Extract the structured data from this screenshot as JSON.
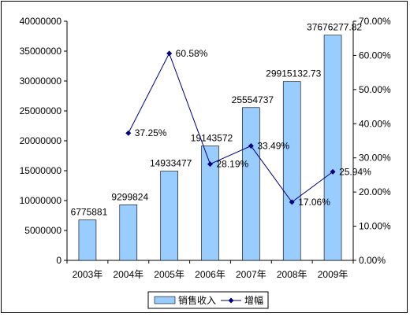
{
  "chart_data": {
    "type": "bar+line",
    "categories": [
      "2003年",
      "2004年",
      "2005年",
      "2006年",
      "2007年",
      "2008年",
      "2009年"
    ],
    "series": [
      {
        "name": "销售收入",
        "kind": "bar",
        "axis": "left",
        "values": [
          6775881,
          9299824,
          14933477,
          19143572,
          25554737,
          29915132.73,
          37676277.82
        ],
        "labels": [
          "6775881",
          "9299824",
          "14933477",
          "19143572",
          "25554737",
          "29915132.73",
          "37676277.82"
        ]
      },
      {
        "name": "增幅",
        "kind": "line",
        "axis": "right",
        "values": [
          null,
          37.25,
          60.58,
          28.19,
          33.49,
          17.06,
          25.94
        ],
        "labels": [
          null,
          "37.25%",
          "60.58%",
          "28.19%",
          "33.49%",
          "17.06%",
          "25.94%"
        ]
      }
    ],
    "y_left": {
      "ylim": [
        0,
        40000000
      ],
      "ticks": [
        "0",
        "5000000",
        "10000000",
        "15000000",
        "20000000",
        "25000000",
        "30000000",
        "35000000",
        "40000000"
      ]
    },
    "y_right": {
      "ylim": [
        0,
        70
      ],
      "ticks": [
        "0.00%",
        "10.00%",
        "20.00%",
        "30.00%",
        "40.00%",
        "50.00%",
        "60.00%",
        "70.00%"
      ]
    },
    "grid": false,
    "legend": "bottom",
    "colors": {
      "bar_fill": "#99ccff",
      "bar_stroke": "#000000",
      "line": "#000080"
    }
  }
}
